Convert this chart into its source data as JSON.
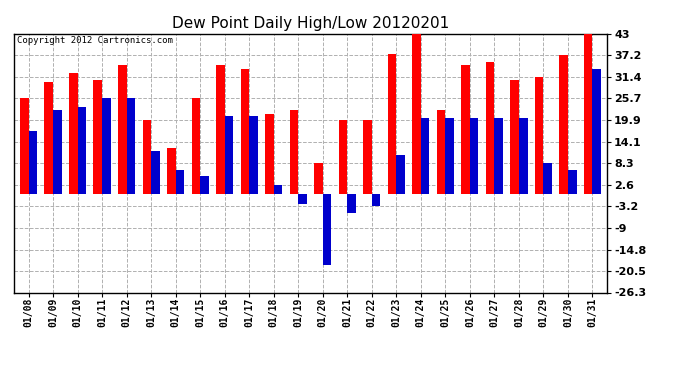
{
  "title": "Dew Point Daily High/Low 20120201",
  "copyright": "Copyright 2012 Cartronics.com",
  "dates": [
    "01/08",
    "01/09",
    "01/10",
    "01/11",
    "01/12",
    "01/13",
    "01/14",
    "01/15",
    "01/16",
    "01/17",
    "01/18",
    "01/19",
    "01/20",
    "01/21",
    "01/22",
    "01/23",
    "01/24",
    "01/25",
    "01/26",
    "01/27",
    "01/28",
    "01/29",
    "01/30",
    "01/31"
  ],
  "highs": [
    25.7,
    30.0,
    32.5,
    30.5,
    34.5,
    19.9,
    12.5,
    25.7,
    34.5,
    33.5,
    21.5,
    22.5,
    8.3,
    19.9,
    19.9,
    37.5,
    43.0,
    22.5,
    34.5,
    35.5,
    30.5,
    31.4,
    37.2,
    43.0
  ],
  "lows": [
    17.0,
    22.5,
    23.5,
    25.7,
    25.7,
    11.5,
    6.5,
    5.0,
    21.0,
    21.0,
    2.6,
    -2.6,
    -19.0,
    -5.0,
    -3.2,
    10.5,
    20.5,
    20.5,
    20.5,
    20.5,
    20.5,
    8.3,
    6.5,
    33.5
  ],
  "high_color": "#ff0000",
  "low_color": "#0000cc",
  "bg_color": "#ffffff",
  "plot_bg": "#ffffff",
  "yticks": [
    43.0,
    37.2,
    31.4,
    25.7,
    19.9,
    14.1,
    8.3,
    2.6,
    -3.2,
    -9.0,
    -14.8,
    -20.5,
    -26.3
  ],
  "ymin": -26.3,
  "ymax": 43.0,
  "grid_color": "#b0b0b0"
}
